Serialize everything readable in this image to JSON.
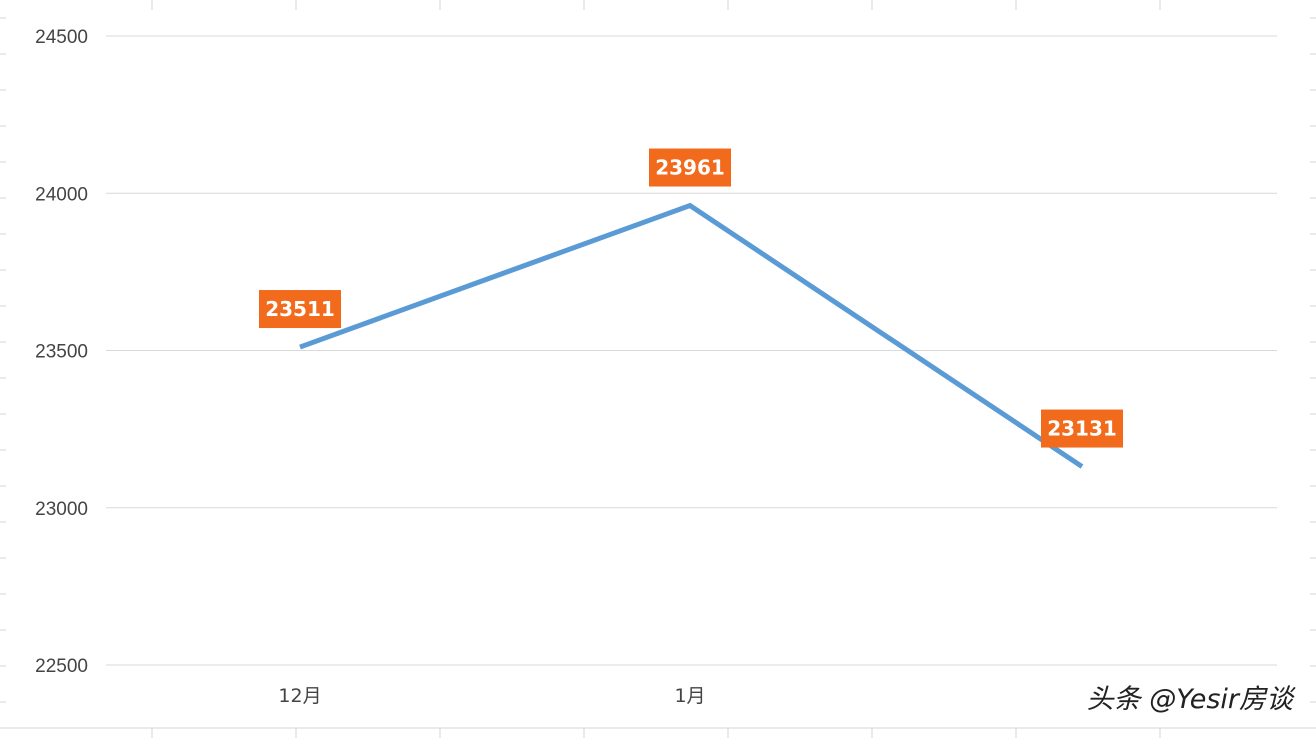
{
  "chart_data": {
    "type": "line",
    "categories": [
      "12月",
      "1月",
      ""
    ],
    "series": [
      {
        "values": [
          23511,
          23961,
          23131
        ]
      }
    ],
    "data_labels": [
      "23511",
      "23961",
      "23131"
    ],
    "ylim": [
      22500,
      24500
    ],
    "yticks": [
      "22500",
      "23000",
      "23500",
      "24000",
      "24500"
    ],
    "grid": true,
    "legend": "none",
    "line_color": "#5B9BD5",
    "label_color": "#F26B1D",
    "background_grid_color": "#D0D4DA"
  },
  "watermark": "头条 @Yesir房谈"
}
